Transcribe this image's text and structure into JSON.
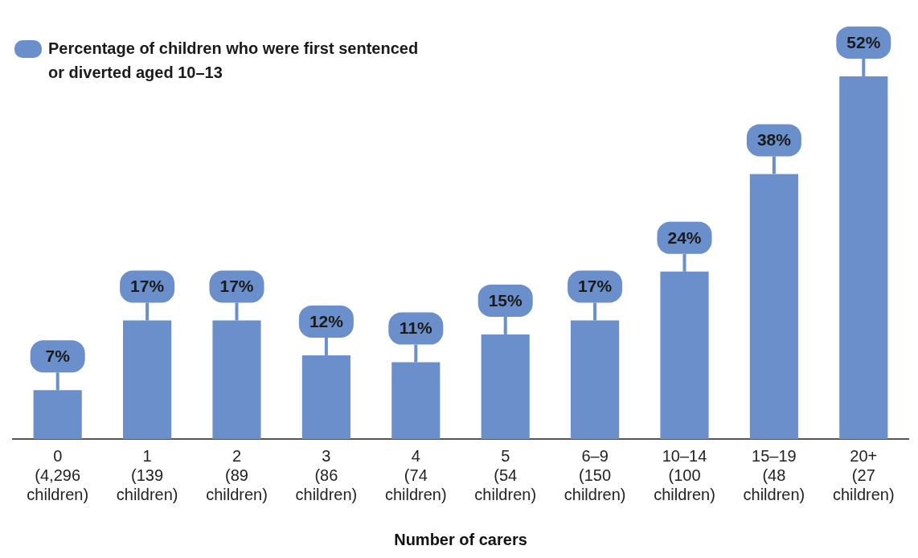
{
  "chart_data": {
    "type": "bar",
    "categories": [
      "0\n(4,296\nchildren)",
      "1\n(139\nchildren)",
      "2\n(89\nchildren)",
      "3\n(86\nchildren)",
      "4\n(74\nchildren)",
      "5\n(54\nchildren)",
      "6–9\n(150\nchildren)",
      "10–14\n(100\nchildren)",
      "15–19\n(48\nchildren)",
      "20+\n(27\nchildren)"
    ],
    "series": [
      {
        "name": "Percentage of children who were first sentenced or diverted aged 10–13",
        "color": "#6b8fcb",
        "values": [
          7,
          17,
          17,
          12,
          11,
          15,
          17,
          24,
          38,
          52
        ],
        "value_labels": [
          "7%",
          "17%",
          "17%",
          "12%",
          "11%",
          "15%",
          "17%",
          "24%",
          "38%",
          "52%"
        ]
      }
    ],
    "xlabel": "Number of carers",
    "relative": false,
    "grid": false,
    "legend": "top left"
  }
}
